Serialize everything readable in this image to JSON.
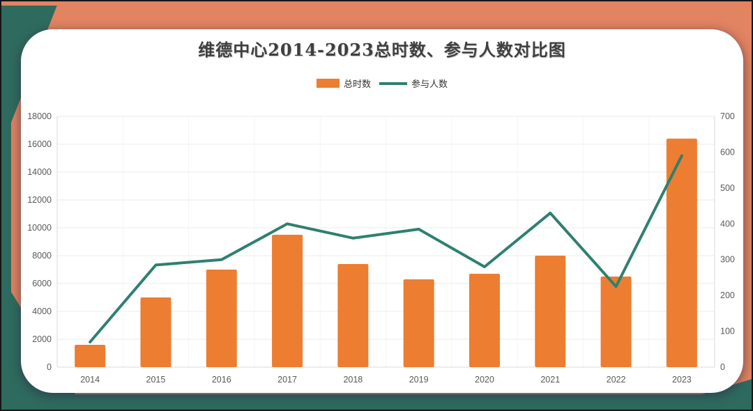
{
  "page": {
    "title": "维德中心2014-2023总时数、参与人数对比图"
  },
  "legend": {
    "bar_label": "总时数",
    "line_label": "参与人数"
  },
  "colors": {
    "background": "#E28361",
    "corner_teal": "#2E6B5E",
    "card": "#FFFFFF",
    "bar": "#ED7D31",
    "line": "#2E8070",
    "title_text": "#3F3F3F",
    "axis_text": "#595959",
    "grid_h": "#EBEBEB",
    "grid_v": "#F4F4F4",
    "axis_line": "#D9D9D9"
  },
  "chart_data": {
    "type": "bar+line combo",
    "title": "维德中心2014-2023总时数、参与人数对比图",
    "categories": [
      "2014",
      "2015",
      "2016",
      "2017",
      "2018",
      "2019",
      "2020",
      "2021",
      "2022",
      "2023"
    ],
    "series": [
      {
        "name": "总时数",
        "type": "bar",
        "axis": "left",
        "color": "#ED7D31",
        "values": [
          1600,
          5000,
          7000,
          9500,
          7400,
          6300,
          6700,
          8000,
          6500,
          16400
        ]
      },
      {
        "name": "参与人数",
        "type": "line",
        "axis": "right",
        "color": "#2E8070",
        "values": [
          70,
          285,
          300,
          400,
          360,
          385,
          280,
          430,
          225,
          590
        ]
      }
    ],
    "left_axis": {
      "min": 0,
      "max": 18000,
      "step": 2000,
      "ticks": [
        0,
        2000,
        4000,
        6000,
        8000,
        10000,
        12000,
        14000,
        16000,
        18000
      ]
    },
    "right_axis": {
      "min": 0,
      "max": 700,
      "step": 100,
      "ticks": [
        0,
        100,
        200,
        300,
        400,
        500,
        600,
        700
      ]
    },
    "grid": true,
    "legend_position": "top-center"
  }
}
